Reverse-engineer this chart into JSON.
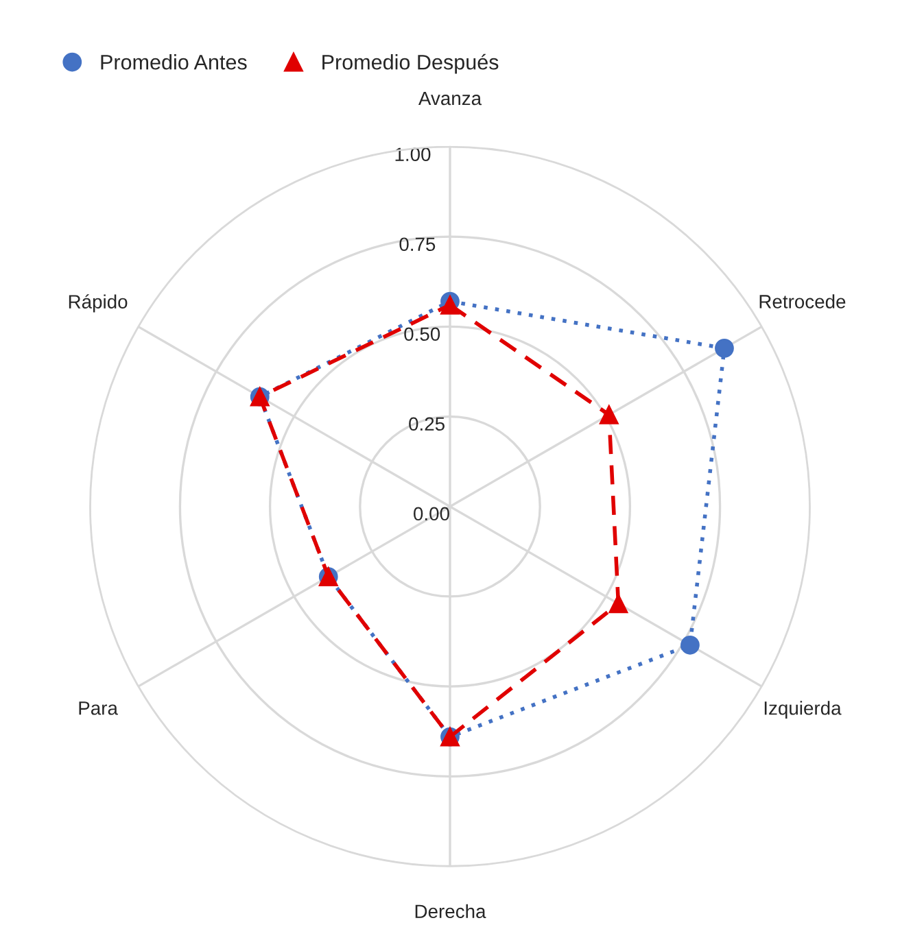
{
  "chart_data": {
    "type": "radar",
    "categories": [
      "Avanza",
      "Retrocede",
      "Izquierda",
      "Derecha",
      "Para",
      "Rápido"
    ],
    "series": [
      {
        "name": "Promedio Antes",
        "color": "#4472c4",
        "values": [
          0.57,
          0.88,
          0.77,
          0.64,
          0.39,
          0.61
        ],
        "marker": "circle",
        "line_style": "dotted"
      },
      {
        "name": "Promedio Después",
        "color": "#e00000",
        "values": [
          0.56,
          0.51,
          0.54,
          0.64,
          0.39,
          0.61
        ],
        "marker": "triangle",
        "line_style": "dashed"
      }
    ],
    "ylim": [
      0,
      1
    ],
    "yticks": [
      {
        "value": 0,
        "label": "0.00"
      },
      {
        "value": 0.25,
        "label": "0.25"
      },
      {
        "value": 0.5,
        "label": "0.50"
      },
      {
        "value": 0.75,
        "label": "0.75"
      },
      {
        "value": 1,
        "label": "1.00"
      }
    ],
    "grid": true,
    "legend": "top left"
  }
}
